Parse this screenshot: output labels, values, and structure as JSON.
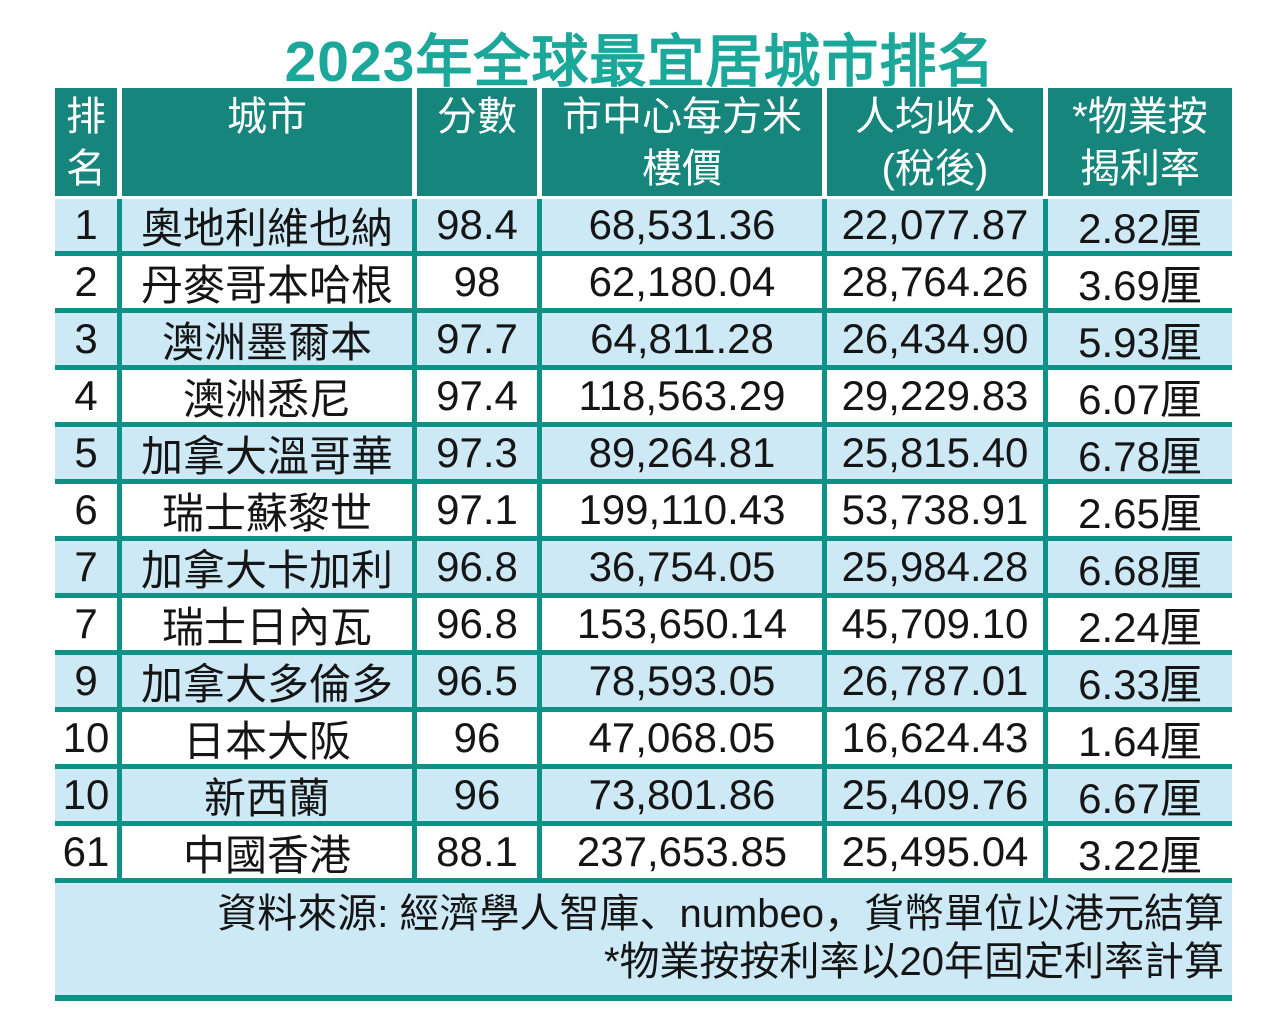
{
  "title": "2023年全球最宜居城市排名",
  "colors": {
    "title_text": "#1BA89A",
    "header_bg": "#16857B",
    "header_text": "#FFFFFF",
    "row_shaded_bg": "#CDE9F6",
    "row_plain_bg": "#FFFFFF",
    "grid_lines": "#0E9187",
    "body_text": "#151515"
  },
  "table": {
    "columns": [
      {
        "line1": "排",
        "line2": "名"
      },
      {
        "line1": "城市",
        "line2": ""
      },
      {
        "line1": "分數",
        "line2": ""
      },
      {
        "line1": "市中心每方米",
        "line2": "樓價"
      },
      {
        "line1": "人均收入",
        "line2": "(稅後)"
      },
      {
        "line1": "*物業按",
        "line2": "揭利率"
      }
    ],
    "rows": [
      {
        "rank": "1",
        "city": "奧地利維也納",
        "score": "98.4",
        "price": "68,531.36",
        "income": "22,077.87",
        "rate": "2.82厘"
      },
      {
        "rank": "2",
        "city": "丹麥哥本哈根",
        "score": "98",
        "price": "62,180.04",
        "income": "28,764.26",
        "rate": "3.69厘"
      },
      {
        "rank": "3",
        "city": "澳洲墨爾本",
        "score": "97.7",
        "price": "64,811.28",
        "income": "26,434.90",
        "rate": "5.93厘"
      },
      {
        "rank": "4",
        "city": "澳洲悉尼",
        "score": "97.4",
        "price": "118,563.29",
        "income": "29,229.83",
        "rate": "6.07厘"
      },
      {
        "rank": "5",
        "city": "加拿大溫哥華",
        "score": "97.3",
        "price": "89,264.81",
        "income": "25,815.40",
        "rate": "6.78厘"
      },
      {
        "rank": "6",
        "city": "瑞士蘇黎世",
        "score": "97.1",
        "price": "199,110.43",
        "income": "53,738.91",
        "rate": "2.65厘"
      },
      {
        "rank": "7",
        "city": "加拿大卡加利",
        "score": "96.8",
        "price": "36,754.05",
        "income": "25,984.28",
        "rate": "6.68厘"
      },
      {
        "rank": "7",
        "city": "瑞士日內瓦",
        "score": "96.8",
        "price": "153,650.14",
        "income": "45,709.10",
        "rate": "2.24厘"
      },
      {
        "rank": "9",
        "city": "加拿大多倫多",
        "score": "96.5",
        "price": "78,593.05",
        "income": "26,787.01",
        "rate": "6.33厘"
      },
      {
        "rank": "10",
        "city": "日本大阪",
        "score": "96",
        "price": "47,068.05",
        "income": "16,624.43",
        "rate": "1.64厘"
      },
      {
        "rank": "10",
        "city": "新西蘭",
        "score": "96",
        "price": "73,801.86",
        "income": "25,409.76",
        "rate": "6.67厘"
      },
      {
        "rank": "61",
        "city": "中國香港",
        "score": "88.1",
        "price": "237,653.85",
        "income": "25,495.04",
        "rate": "3.22厘"
      }
    ]
  },
  "footer": {
    "line1": "資料來源: 經濟學人智庫、numbeo，貨幣單位以港元結算",
    "line2": "*物業按按利率以20年固定利率計算"
  },
  "chart_data": {
    "type": "table",
    "title": "2023年全球最宜居城市排名",
    "columns": [
      "排名",
      "城市",
      "分數",
      "市中心每方米樓價",
      "人均收入(稅後)",
      "*物業按揭利率"
    ],
    "rows": [
      [
        "1",
        "奧地利維也納",
        "98.4",
        "68,531.36",
        "22,077.87",
        "2.82厘"
      ],
      [
        "2",
        "丹麥哥本哈根",
        "98",
        "62,180.04",
        "28,764.26",
        "3.69厘"
      ],
      [
        "3",
        "澳洲墨爾本",
        "97.7",
        "64,811.28",
        "26,434.90",
        "5.93厘"
      ],
      [
        "4",
        "澳洲悉尼",
        "97.4",
        "118,563.29",
        "29,229.83",
        "6.07厘"
      ],
      [
        "5",
        "加拿大溫哥華",
        "97.3",
        "89,264.81",
        "25,815.40",
        "6.78厘"
      ],
      [
        "6",
        "瑞士蘇黎世",
        "97.1",
        "199,110.43",
        "53,738.91",
        "2.65厘"
      ],
      [
        "7",
        "加拿大卡加利",
        "96.8",
        "36,754.05",
        "25,984.28",
        "6.68厘"
      ],
      [
        "7",
        "瑞士日內瓦",
        "96.8",
        "153,650.14",
        "45,709.10",
        "2.24厘"
      ],
      [
        "9",
        "加拿大多倫多",
        "96.5",
        "78,593.05",
        "26,787.01",
        "6.33厘"
      ],
      [
        "10",
        "日本大阪",
        "96",
        "47,068.05",
        "16,624.43",
        "1.64厘"
      ],
      [
        "10",
        "新西蘭",
        "96",
        "73,801.86",
        "25,409.76",
        "6.67厘"
      ],
      [
        "61",
        "中國香港",
        "88.1",
        "237,653.85",
        "25,495.04",
        "3.22厘"
      ]
    ],
    "source_note": "資料來源: 經濟學人智庫、numbeo，貨幣單位以港元結算",
    "footnote": "*物業按按利率以20年固定利率計算"
  }
}
